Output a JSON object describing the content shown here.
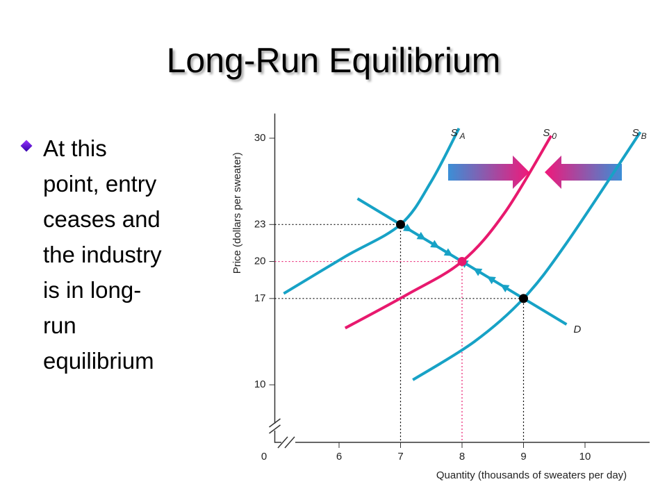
{
  "title": "Long-Run Equilibrium",
  "bullet_lines": [
    "At this",
    "point, entry",
    "ceases and",
    "the industry",
    "is in long-",
    "run",
    "equilibrium"
  ],
  "chart_data": {
    "type": "line",
    "xlabel": "Quantity (thousands of sweaters per day)",
    "ylabel": "Price (dollars per sweater)",
    "origin_label": "0",
    "xlim": [
      5,
      11
    ],
    "ylim": [
      5.5,
      32
    ],
    "xticks": [
      6,
      7,
      8,
      9,
      10
    ],
    "yticks": [
      10,
      17,
      20,
      23,
      30
    ],
    "highlight_color": "#e8196e",
    "highlight_xtick": 8,
    "highlight_ytick": 20,
    "series": [
      {
        "name": "S",
        "name_sub": "A",
        "color": "#17a2c6",
        "x": [
          5.1,
          6.1,
          7,
          7.5,
          7.95
        ],
        "values": [
          17.4,
          20.4,
          23,
          26.5,
          30.8
        ]
      },
      {
        "name": "S",
        "name_sub": "0",
        "color": "#e8196e",
        "x": [
          6.1,
          7.1,
          8,
          8.7,
          9.45
        ],
        "values": [
          14.6,
          17.3,
          20,
          24,
          30.2
        ]
      },
      {
        "name": "S",
        "name_sub": "B",
        "color": "#17a2c6",
        "x": [
          7.2,
          8.2,
          9,
          9.7,
          10.9
        ],
        "values": [
          10.4,
          13.5,
          17,
          21.5,
          30.5
        ]
      },
      {
        "name": "D",
        "color": "#17a2c6",
        "x": [
          6.3,
          9.7
        ],
        "values": [
          25.1,
          14.9
        ]
      }
    ],
    "points": {
      "x": [
        7,
        8,
        9
      ],
      "values": [
        23,
        20,
        17
      ],
      "colors": [
        "#000000",
        "#e8196e",
        "#000000"
      ]
    }
  }
}
